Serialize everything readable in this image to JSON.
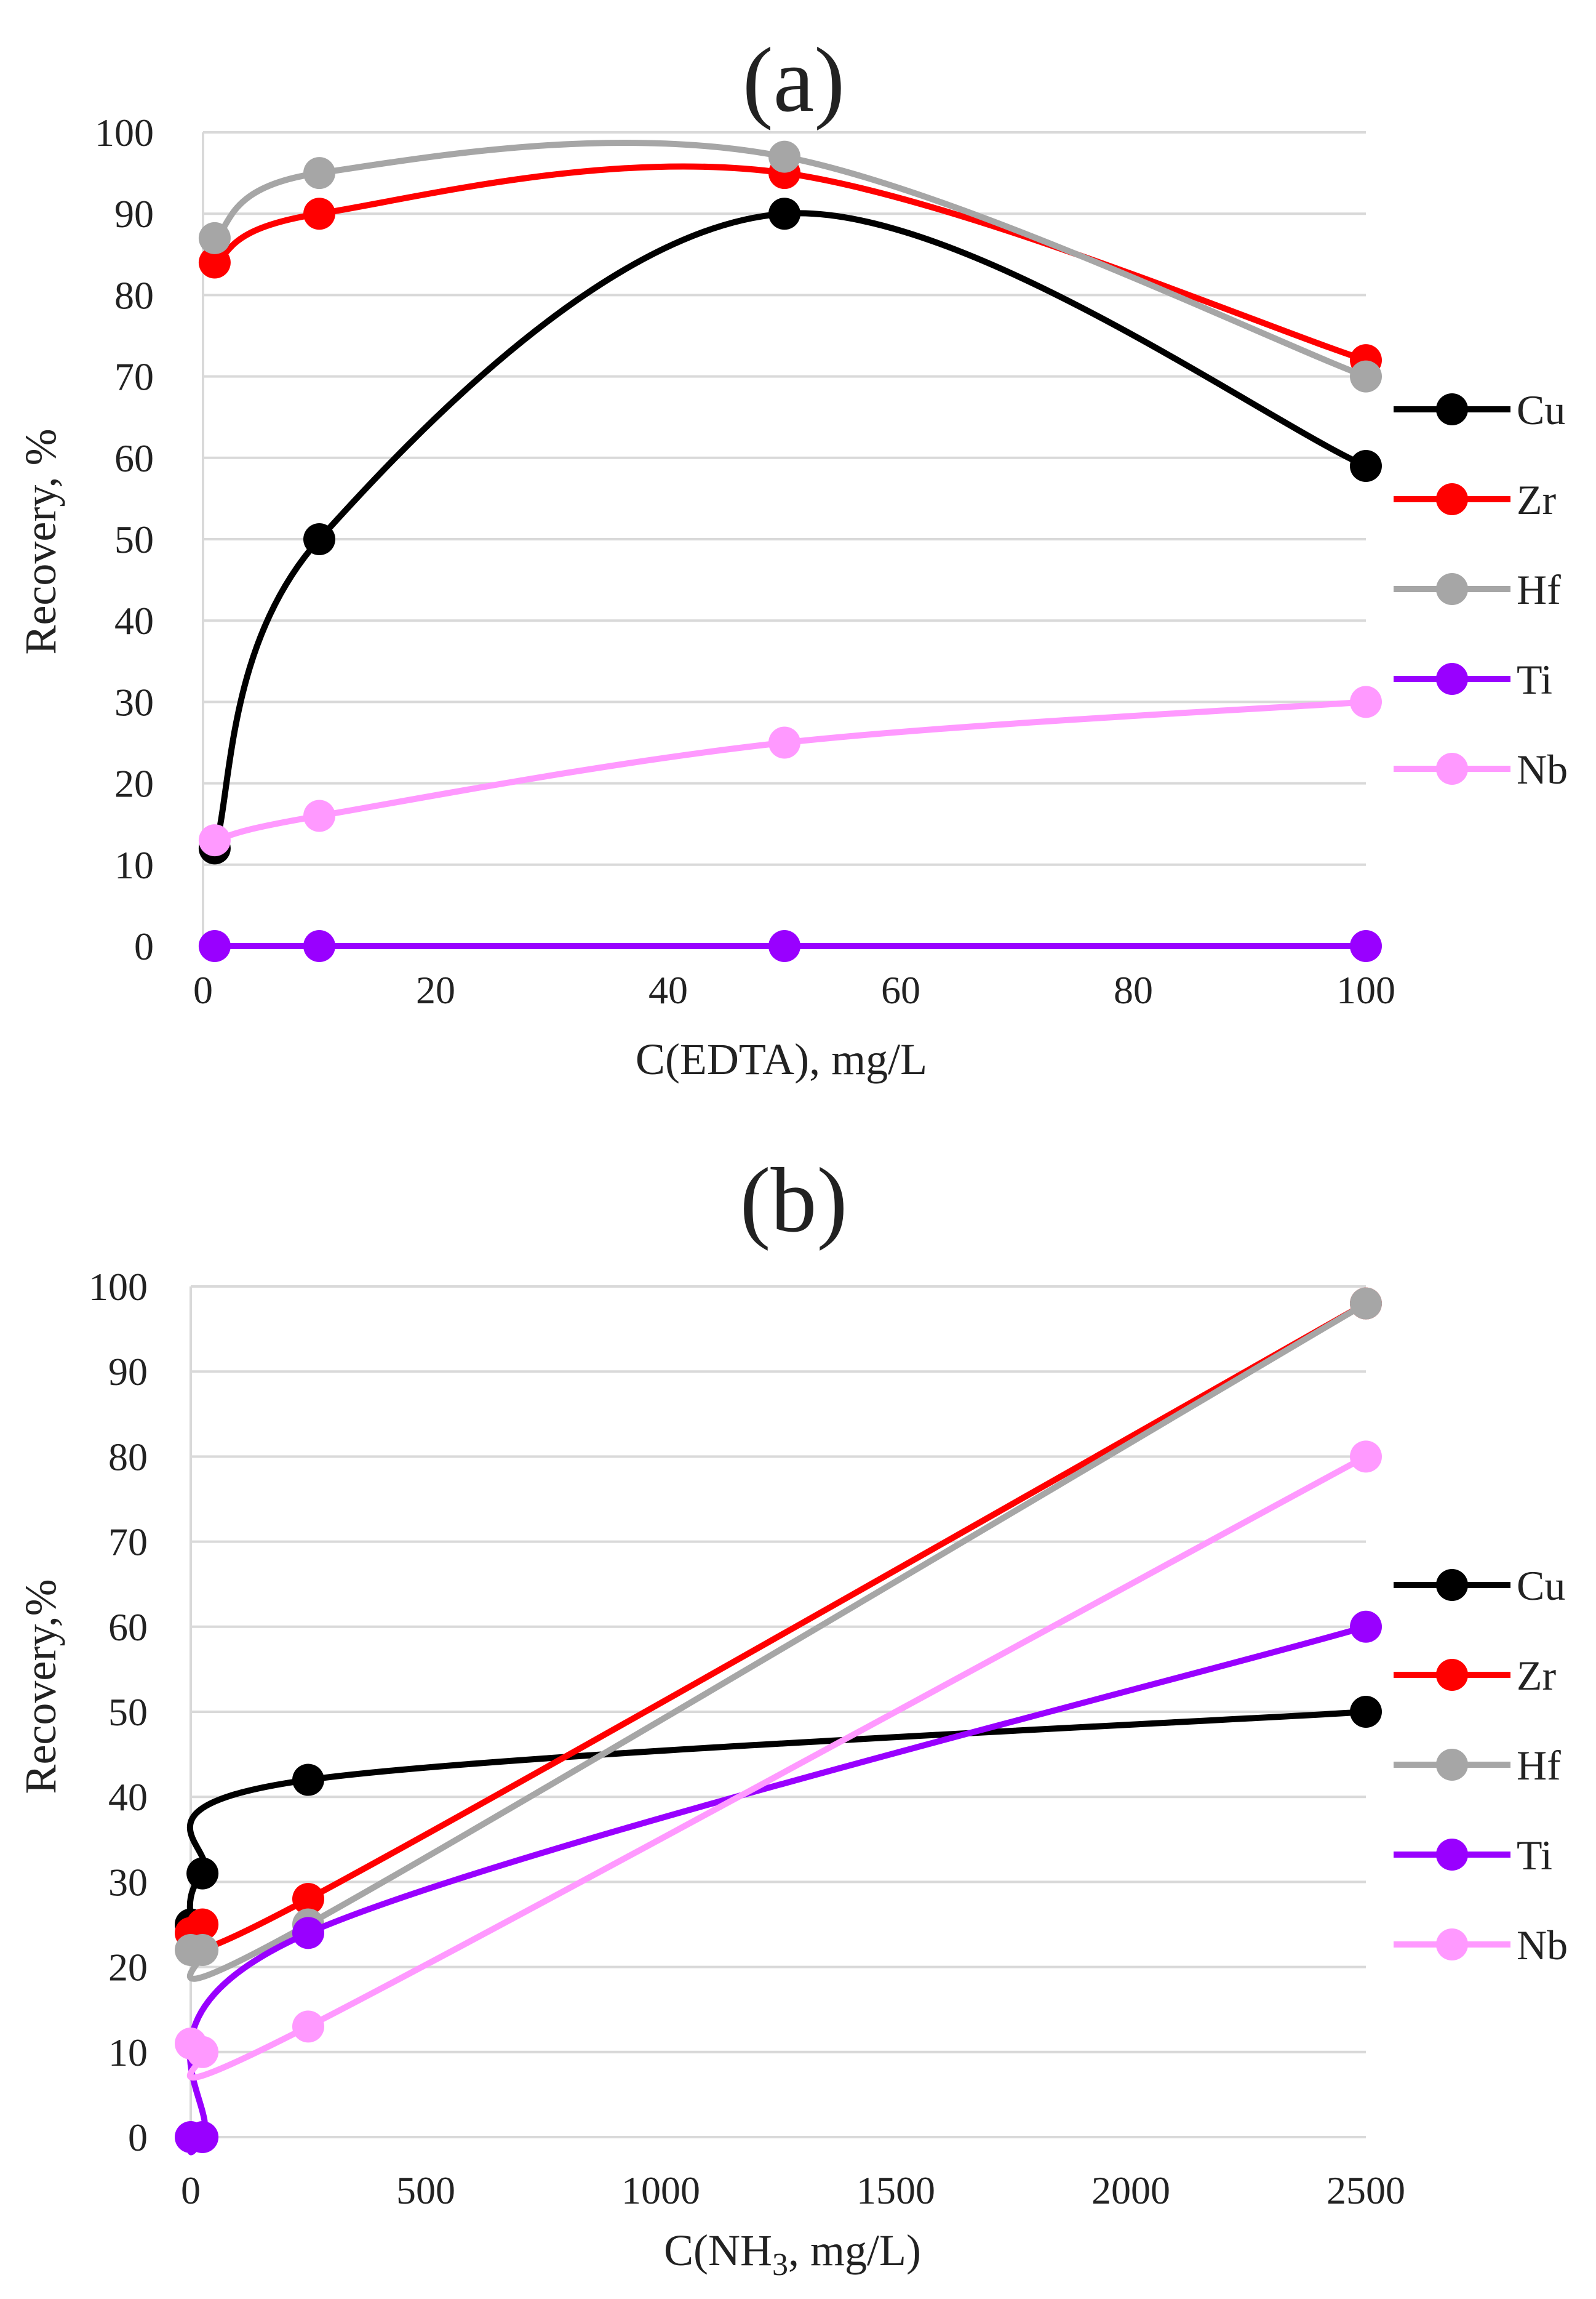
{
  "chart_data": [
    {
      "type": "line",
      "title": "(a)",
      "xlabel": "C(EDTA), mg/L",
      "ylabel": "Recovery, %",
      "xlim": [
        0,
        100
      ],
      "ylim": [
        0,
        100
      ],
      "xticks": [
        "0",
        "20",
        "40",
        "60",
        "80",
        "100"
      ],
      "yticks": [
        "0",
        "10",
        "20",
        "30",
        "40",
        "50",
        "60",
        "70",
        "80",
        "90",
        "100"
      ],
      "x": [
        1,
        10,
        50,
        100
      ],
      "series": [
        {
          "name": "Cu",
          "color": "#000000",
          "values": [
            12,
            50,
            90,
            59
          ]
        },
        {
          "name": "Zr",
          "color": "#ff0000",
          "values": [
            84,
            90,
            95,
            72
          ]
        },
        {
          "name": "Hf",
          "color": "#a6a6a6",
          "values": [
            87,
            95,
            97,
            70
          ]
        },
        {
          "name": "Ti",
          "color": "#9900ff",
          "values": [
            0,
            0,
            0,
            0
          ]
        },
        {
          "name": "Nb",
          "color": "#ff99ff",
          "values": [
            13,
            16,
            25,
            30
          ]
        }
      ]
    },
    {
      "type": "line",
      "title": "(b)",
      "xlabel": "C(NH3, mg/L)",
      "ylabel": "Recovery,%",
      "xlim": [
        0,
        2500
      ],
      "ylim": [
        0,
        100
      ],
      "xticks": [
        "0",
        "500",
        "1000",
        "1500",
        "2000",
        "2500"
      ],
      "yticks": [
        "0",
        "10",
        "20",
        "30",
        "40",
        "50",
        "60",
        "70",
        "80",
        "90",
        "100"
      ],
      "x": [
        0,
        25,
        250,
        2500
      ],
      "series": [
        {
          "name": "Cu",
          "color": "#000000",
          "values": [
            25,
            31,
            42,
            50
          ]
        },
        {
          "name": "Zr",
          "color": "#ff0000",
          "values": [
            24,
            25,
            28,
            98
          ]
        },
        {
          "name": "Hf",
          "color": "#a6a6a6",
          "values": [
            22,
            22,
            25,
            98
          ]
        },
        {
          "name": "Ti",
          "color": "#9900ff",
          "values": [
            0,
            0,
            24,
            60
          ]
        },
        {
          "name": "Nb",
          "color": "#ff99ff",
          "values": [
            11,
            10,
            13,
            80
          ]
        }
      ]
    }
  ]
}
